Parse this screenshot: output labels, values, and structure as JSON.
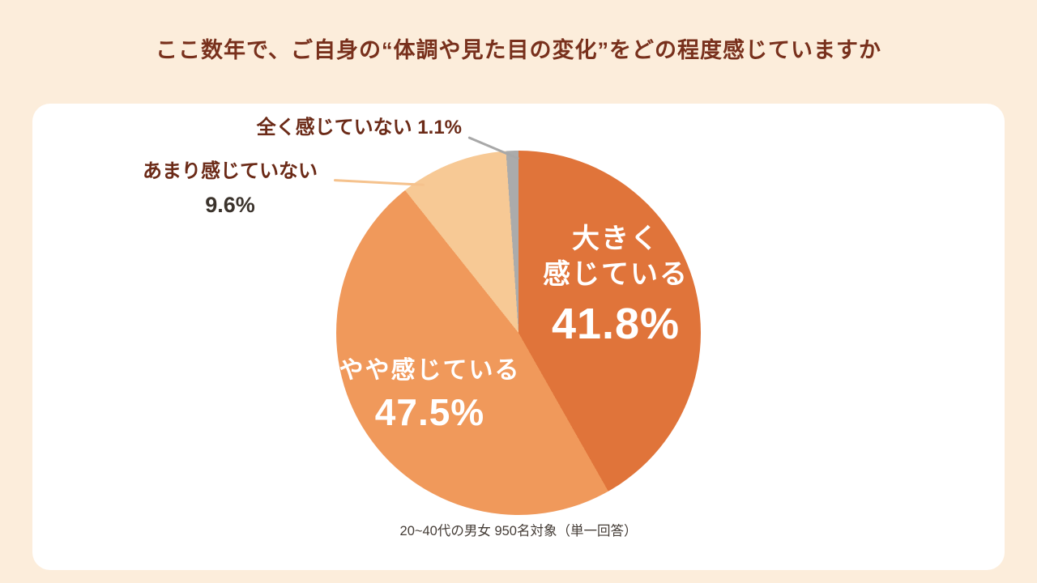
{
  "page": {
    "title": "ここ数年で、ご自身の“体調や見た目の変化”をどの程度感じていますか",
    "footnote": "20~40代の男女 950名対象（単一回答）",
    "colors": {
      "background": "#FCEDDB",
      "card": "#FFFFFF",
      "title_text": "#78301C",
      "outside_label_text": "#6B2A17",
      "leader_gray": "#A8A8A8",
      "leader_orange": "#F5C28D"
    }
  },
  "chart_data": {
    "type": "pie",
    "title": "ここ数年で、ご自身の“体調や見た目の変化”をどの程度感じていますか",
    "footnote": "20~40代の男女 950名対象（単一回答）",
    "start_angle_deg": 0,
    "direction": "clockwise",
    "total": 100,
    "legend_position": "none",
    "slices": [
      {
        "label": "大きく感じている",
        "label_lines": [
          "大きく",
          "感じている"
        ],
        "value": 41.8,
        "pct_label": "41.8%",
        "color": "#E0743A",
        "label_position": "inside"
      },
      {
        "label": "やや感じている",
        "value": 47.5,
        "pct_label": "47.5%",
        "color": "#F0995B",
        "label_position": "inside"
      },
      {
        "label": "あまり感じていない",
        "value": 9.6,
        "pct_label": "9.6%",
        "color": "#F7C995",
        "label_position": "outside"
      },
      {
        "label": "全く感じていない",
        "value": 1.1,
        "pct_label": "1.1%",
        "color": "#ABABAB",
        "label_position": "outside"
      }
    ]
  }
}
